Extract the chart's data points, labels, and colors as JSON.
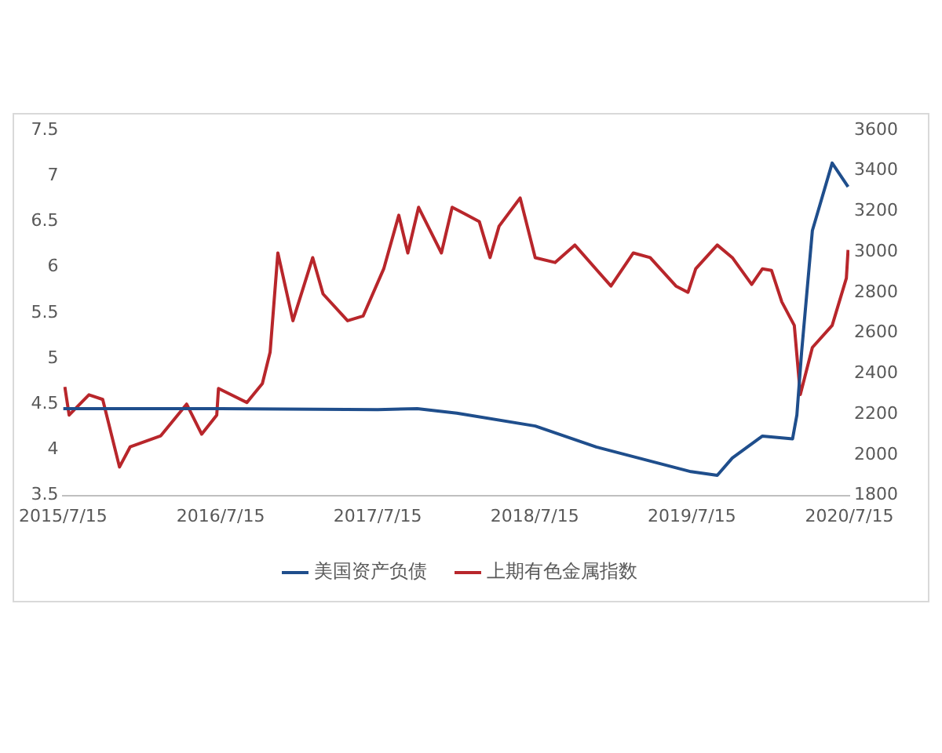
{
  "chart_data": {
    "type": "line",
    "xlim": [
      "2015-07-15",
      "2020-07-15"
    ],
    "xticks": [
      {
        "value": "2015-07-15",
        "label": "2015/7/15"
      },
      {
        "value": "2016-07-15",
        "label": "2016/7/15"
      },
      {
        "value": "2017-07-15",
        "label": "2017/7/15"
      },
      {
        "value": "2018-07-15",
        "label": "2018/7/15"
      },
      {
        "value": "2019-07-15",
        "label": "2019/7/15"
      },
      {
        "value": "2020-07-15",
        "label": "2020/7/15"
      }
    ],
    "ylim": [
      3.5,
      7.5
    ],
    "yticks": [
      3.5,
      4,
      4.5,
      5,
      5.5,
      6,
      6.5,
      7,
      7.5
    ],
    "y2lim": [
      1800,
      3600
    ],
    "y2ticks": [
      1800,
      2000,
      2200,
      2400,
      2600,
      2800,
      3000,
      3200,
      3400,
      3600
    ],
    "grid": false,
    "legend": "bottom",
    "marker": "none",
    "line_style": "solid",
    "series": [
      {
        "name": "美国资产负债",
        "color": "#1f4e8c",
        "axis": "y",
        "x": [
          "2015-07-15",
          "2016-07-15",
          "2017-07-15",
          "2017-10-15",
          "2018-01-15",
          "2018-07-16",
          "2018-12-05",
          "2019-07-13",
          "2019-09-12",
          "2019-10-17",
          "2019-12-26",
          "2020-03-05",
          "2020-03-15",
          "2020-03-26",
          "2020-04-20",
          "2020-06-05",
          "2020-07-12"
        ],
        "values": [
          4.45,
          4.45,
          4.44,
          4.45,
          4.4,
          4.26,
          4.03,
          3.76,
          3.72,
          3.91,
          4.15,
          4.12,
          4.38,
          5.07,
          6.4,
          7.14,
          6.88
        ]
      },
      {
        "name": "上期有色金属指数",
        "color": "#b8262b",
        "axis": "y2",
        "x": [
          "2015-07-19",
          "2015-07-29",
          "2015-09-13",
          "2015-10-15",
          "2015-11-23",
          "2015-12-18",
          "2016-02-27",
          "2016-04-27",
          "2016-06-01",
          "2016-07-06",
          "2016-07-10",
          "2016-09-14",
          "2016-10-20",
          "2016-11-07",
          "2016-11-25",
          "2016-12-30",
          "2017-02-14",
          "2017-03-10",
          "2017-05-06",
          "2017-06-11",
          "2017-07-29",
          "2017-09-02",
          "2017-09-23",
          "2017-10-18",
          "2017-12-10",
          "2018-01-04",
          "2018-02-01",
          "2018-03-08",
          "2018-04-02",
          "2018-04-23",
          "2018-06-11",
          "2018-07-16",
          "2018-08-31",
          "2018-10-16",
          "2019-01-08",
          "2019-03-01",
          "2019-04-09",
          "2019-06-08",
          "2019-07-06",
          "2019-07-24",
          "2019-09-12",
          "2019-10-17",
          "2019-12-01",
          "2019-12-26",
          "2020-01-16",
          "2020-02-09",
          "2020-03-09",
          "2020-03-23",
          "2020-04-20",
          "2020-06-05",
          "2020-07-08",
          "2020-07-12"
        ],
        "values": [
          2335,
          2196,
          2296,
          2273,
          1940,
          2040,
          2094,
          2250,
          2102,
          2196,
          2327,
          2258,
          2351,
          2506,
          2995,
          2661,
          2972,
          2793,
          2661,
          2684,
          2917,
          3181,
          2995,
          3220,
          2995,
          3220,
          3189,
          3150,
          2972,
          3127,
          3266,
          2972,
          2948,
          3034,
          2832,
          2995,
          2972,
          2832,
          2801,
          2917,
          3034,
          2972,
          2840,
          2917,
          2909,
          2754,
          2638,
          2297,
          2529,
          2638,
          2871,
          3010
        ]
      }
    ]
  }
}
